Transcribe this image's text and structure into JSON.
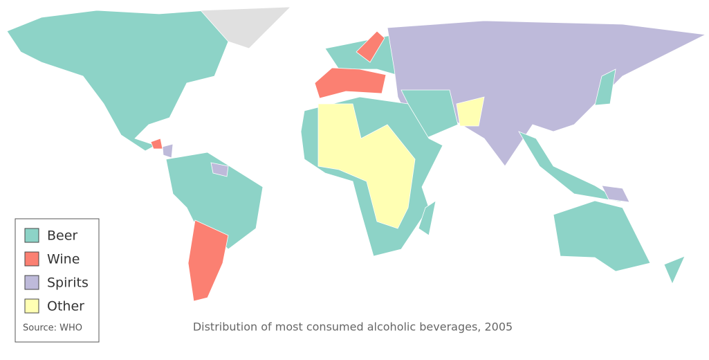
{
  "title": "Distribution of most consumed alcoholic beverages, 2005",
  "source": "Source: WHO",
  "legend": [
    {
      "label": "Beer",
      "color": "#8dd3c7"
    },
    {
      "label": "Wine",
      "color": "#fb8072"
    },
    {
      "label": "Spirits",
      "color": "#bebada"
    },
    {
      "label": "Other",
      "color": "#ffffb3"
    }
  ]
}
